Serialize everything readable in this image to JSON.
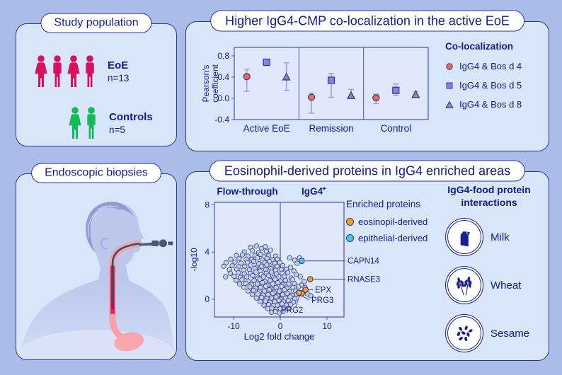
{
  "colors": {
    "background": "#ACBCE8",
    "panel_bg": "#D9E5F8",
    "panel_border": "#2E35A0",
    "navy_text": "#141B8C",
    "eoe_red": "#D6115E",
    "controls_green": "#12BD59",
    "error_bar": "#9B9FD8",
    "scatter_dot": "#C6D0E8",
    "scatter_dot_border": "#3D4E8C",
    "axis": "#4A55A5",
    "plot_bg": "#DFE9FB"
  },
  "panels": {
    "study": {
      "title": "Study population",
      "groups": [
        {
          "label": "EoE",
          "n_label": "n=13",
          "figures": [
            "female",
            "male",
            "female",
            "male"
          ],
          "color": "#D6115E"
        },
        {
          "label": "Controls",
          "n_label": "n=5",
          "figures": [
            "female",
            "male"
          ],
          "color": "#12BD59"
        }
      ]
    },
    "colocalization": {
      "title": "Higher IgG4-CMP co-localization in the active EoE"
    },
    "biopsies": {
      "title": "Endoscopic biopsies"
    },
    "proteomics": {
      "title": "Eosinophil-derived proteins in IgG4 enriched areas",
      "food": {
        "heading_line1": "IgG4-food protein",
        "heading_line2": "interactions",
        "items": [
          {
            "name": "Milk",
            "icon": "milk-icon"
          },
          {
            "name": "Wheat",
            "icon": "wheat-icon"
          },
          {
            "name": "Sesame",
            "icon": "sesame-icon"
          }
        ]
      }
    }
  },
  "chart_data": [
    {
      "type": "scatter",
      "id": "pearson-coefficient-plot",
      "title": "Higher IgG4-CMP co-localization in the active EoE",
      "ylabel": "Pearson's coefficient",
      "ylabel_lines": [
        "Pearson's",
        "coefficient"
      ],
      "categories": [
        "Active EoE",
        "Remission",
        "Control"
      ],
      "yticks": [
        -0.4,
        0.0,
        0.4,
        0.8
      ],
      "ylim": [
        -0.4,
        0.96
      ],
      "grid": false,
      "legend_title": "Co-localization",
      "legend_position": "right",
      "series": [
        {
          "name": "IgG4 & Bos d 4",
          "marker": "circle",
          "color": "#F0685C",
          "values": [
            0.41,
            0.02,
            0.01
          ],
          "err_low": [
            0.13,
            -0.28,
            -0.1
          ],
          "err_high": [
            0.55,
            0.1,
            0.08
          ]
        },
        {
          "name": "IgG4 & Bos d 5",
          "marker": "square",
          "color": "#8C80E2",
          "values": [
            0.68,
            0.34,
            0.15
          ],
          "err_low": [
            0.62,
            0.02,
            0.05
          ],
          "err_high": [
            0.74,
            0.47,
            0.27
          ]
        },
        {
          "name": "IgG4 & Bos d 8",
          "marker": "triangle",
          "color": "#8A8AAC",
          "values": [
            0.4,
            0.05,
            0.07
          ],
          "err_low": [
            0.15,
            0.0,
            0.02
          ],
          "err_high": [
            0.67,
            0.17,
            0.13
          ]
        }
      ]
    },
    {
      "type": "scatter",
      "id": "volcano-plot",
      "xlabel": "Log2 fold change",
      "ylabel": "-log10",
      "column_left": "Flow-through",
      "column_right": "IgG4",
      "column_right_sup": "+",
      "xticks": [
        -10,
        0,
        10
      ],
      "yticks": [
        0,
        4,
        8
      ],
      "xlim": [
        -14.5,
        14
      ],
      "ylim": [
        -1.5,
        8.2
      ],
      "divider_x": 0,
      "legend": {
        "title": "Enriched proteins",
        "items": [
          {
            "label": "eosinopil-derived",
            "color": "#F2A41F"
          },
          {
            "label": "epithelial-derived",
            "color": "#4DC4F0"
          }
        ]
      },
      "highlighted": [
        {
          "label": "CAPN14",
          "x": 4.6,
          "y": 3.25,
          "color": "#4DC4F0"
        },
        {
          "label": "RNASE3",
          "x": 6.4,
          "y": 1.7,
          "color": "#F2A41F"
        },
        {
          "label": "EPX",
          "x": 5.4,
          "y": 0.8,
          "color": "#F2A41F"
        },
        {
          "label": "PRG3",
          "x": 4.6,
          "y": 0.5,
          "color": "#F2A41F"
        },
        {
          "label": "PRG2",
          "x": 4.0,
          "y": 0.55,
          "color": "#F2A41F"
        }
      ],
      "background_points": [
        [
          -6.4,
          4.4
        ],
        [
          -5.1,
          4.5
        ],
        [
          -4.0,
          4.3
        ],
        [
          -3.2,
          4.45
        ],
        [
          -7.7,
          4.0
        ],
        [
          -6.0,
          4.1
        ],
        [
          -4.6,
          3.95
        ],
        [
          -3.0,
          4.05
        ],
        [
          -2.1,
          4.15
        ],
        [
          -9.4,
          3.7
        ],
        [
          -8.1,
          3.75
        ],
        [
          -6.9,
          3.65
        ],
        [
          -5.4,
          3.7
        ],
        [
          -4.2,
          3.8
        ],
        [
          -3.5,
          3.6
        ],
        [
          -2.5,
          3.7
        ],
        [
          -1.0,
          3.65
        ],
        [
          -10.6,
          3.4
        ],
        [
          -8.8,
          3.45
        ],
        [
          -7.3,
          3.35
        ],
        [
          -6.1,
          3.4
        ],
        [
          -4.9,
          3.5
        ],
        [
          -3.8,
          3.3
        ],
        [
          -2.8,
          3.45
        ],
        [
          -1.7,
          3.35
        ],
        [
          -0.6,
          3.4
        ],
        [
          2.0,
          3.5
        ],
        [
          3.1,
          3.3
        ],
        [
          -11.6,
          3.1
        ],
        [
          -9.7,
          3.15
        ],
        [
          -8.4,
          3.05
        ],
        [
          -7.0,
          3.1
        ],
        [
          -5.7,
          3.2
        ],
        [
          -4.6,
          3.0
        ],
        [
          -3.3,
          3.1
        ],
        [
          -2.3,
          3.2
        ],
        [
          -1.2,
          3.05
        ],
        [
          -0.1,
          3.1
        ],
        [
          3.6,
          3.05
        ],
        [
          4.1,
          3.5
        ],
        [
          -12.1,
          2.8
        ],
        [
          -10.3,
          2.85
        ],
        [
          -8.9,
          2.75
        ],
        [
          -7.6,
          2.8
        ],
        [
          -6.3,
          2.9
        ],
        [
          -5.1,
          2.7
        ],
        [
          -4.0,
          2.8
        ],
        [
          -2.9,
          2.9
        ],
        [
          -1.8,
          2.75
        ],
        [
          -0.7,
          2.8
        ],
        [
          0.5,
          2.85
        ],
        [
          2.2,
          2.7
        ],
        [
          -10.9,
          2.5
        ],
        [
          -9.3,
          2.55
        ],
        [
          -7.9,
          2.45
        ],
        [
          -6.6,
          2.5
        ],
        [
          -5.4,
          2.6
        ],
        [
          -4.3,
          2.4
        ],
        [
          -3.1,
          2.5
        ],
        [
          -2.0,
          2.6
        ],
        [
          -1.0,
          2.45
        ],
        [
          0.2,
          2.5
        ],
        [
          1.3,
          2.55
        ],
        [
          2.9,
          2.4
        ],
        [
          -10.7,
          2.2
        ],
        [
          -9.0,
          2.25
        ],
        [
          -7.7,
          2.15
        ],
        [
          -6.4,
          2.2
        ],
        [
          -5.2,
          2.3
        ],
        [
          -4.1,
          2.1
        ],
        [
          -3.0,
          2.2
        ],
        [
          -1.9,
          2.3
        ],
        [
          -0.8,
          2.15
        ],
        [
          0.4,
          2.2
        ],
        [
          1.6,
          2.25
        ],
        [
          3.4,
          2.1
        ],
        [
          -11.7,
          1.9
        ],
        [
          -9.9,
          1.95
        ],
        [
          -8.5,
          1.85
        ],
        [
          -7.2,
          1.9
        ],
        [
          -5.9,
          2.0
        ],
        [
          -4.8,
          1.8
        ],
        [
          -3.6,
          1.9
        ],
        [
          -2.5,
          2.0
        ],
        [
          -1.4,
          1.85
        ],
        [
          -0.3,
          1.9
        ],
        [
          0.9,
          1.95
        ],
        [
          2.3,
          1.8
        ],
        [
          4.3,
          1.9
        ],
        [
          -9.5,
          1.6
        ],
        [
          -8.2,
          1.65
        ],
        [
          -6.9,
          1.55
        ],
        [
          -5.6,
          1.6
        ],
        [
          -4.4,
          1.7
        ],
        [
          -3.3,
          1.5
        ],
        [
          -2.2,
          1.6
        ],
        [
          -1.1,
          1.7
        ],
        [
          0.0,
          1.55
        ],
        [
          1.1,
          1.6
        ],
        [
          2.6,
          1.65
        ],
        [
          5.1,
          1.5
        ],
        [
          -8.7,
          1.3
        ],
        [
          -7.4,
          1.35
        ],
        [
          -6.1,
          1.25
        ],
        [
          -4.9,
          1.3
        ],
        [
          -3.8,
          1.4
        ],
        [
          -2.7,
          1.2
        ],
        [
          -1.6,
          1.3
        ],
        [
          -0.5,
          1.4
        ],
        [
          0.6,
          1.25
        ],
        [
          1.8,
          1.3
        ],
        [
          3.0,
          1.35
        ],
        [
          4.5,
          1.2
        ],
        [
          -7.8,
          1.0
        ],
        [
          -6.5,
          1.05
        ],
        [
          -5.3,
          0.95
        ],
        [
          -4.2,
          1.0
        ],
        [
          -3.1,
          1.1
        ],
        [
          -2.0,
          0.9
        ],
        [
          -0.9,
          1.0
        ],
        [
          0.3,
          1.1
        ],
        [
          1.4,
          0.95
        ],
        [
          2.7,
          1.0
        ],
        [
          3.9,
          1.05
        ],
        [
          5.3,
          1.0
        ],
        [
          -6.9,
          0.7
        ],
        [
          -5.7,
          0.75
        ],
        [
          -4.5,
          0.65
        ],
        [
          -3.4,
          0.7
        ],
        [
          -2.3,
          0.8
        ],
        [
          -1.3,
          0.6
        ],
        [
          -0.2,
          0.7
        ],
        [
          0.9,
          0.8
        ],
        [
          2.0,
          0.65
        ],
        [
          3.3,
          0.7
        ],
        [
          4.9,
          0.6
        ],
        [
          -6.0,
          0.4
        ],
        [
          -4.8,
          0.45
        ],
        [
          -3.7,
          0.35
        ],
        [
          -2.6,
          0.4
        ],
        [
          -1.6,
          0.5
        ],
        [
          -0.6,
          0.3
        ],
        [
          0.5,
          0.4
        ],
        [
          1.5,
          0.5
        ],
        [
          2.5,
          0.35
        ],
        [
          3.5,
          0.4
        ],
        [
          5.8,
          0.45
        ],
        [
          -5.1,
          0.1
        ],
        [
          -4.0,
          0.15
        ],
        [
          -2.9,
          0.05
        ],
        [
          -1.9,
          0.1
        ],
        [
          -0.9,
          0.2
        ],
        [
          0.1,
          0.0
        ],
        [
          1.1,
          0.1
        ],
        [
          2.1,
          0.2
        ],
        [
          3.1,
          0.05
        ],
        [
          6.5,
          0.3
        ],
        [
          -4.3,
          -0.2
        ],
        [
          -3.2,
          -0.15
        ],
        [
          -2.2,
          -0.25
        ],
        [
          -1.2,
          -0.2
        ],
        [
          -0.3,
          -0.1
        ],
        [
          0.7,
          -0.2
        ],
        [
          1.7,
          -0.1
        ],
        [
          2.8,
          -0.25
        ],
        [
          -3.5,
          -0.5
        ],
        [
          -2.5,
          -0.45
        ],
        [
          -1.5,
          -0.55
        ],
        [
          -0.6,
          -0.5
        ],
        [
          0.4,
          -0.4
        ],
        [
          1.3,
          -0.5
        ],
        [
          2.2,
          -0.45
        ],
        [
          -2.7,
          -0.8
        ],
        [
          -1.8,
          -0.75
        ],
        [
          -0.9,
          -0.85
        ],
        [
          0.0,
          -0.8
        ],
        [
          0.8,
          -0.7
        ],
        [
          1.7,
          -0.8
        ],
        [
          -1.9,
          -1.1
        ],
        [
          -1.0,
          -1.05
        ],
        [
          -0.2,
          -1.15
        ],
        [
          0.6,
          -1.05
        ]
      ]
    }
  ]
}
